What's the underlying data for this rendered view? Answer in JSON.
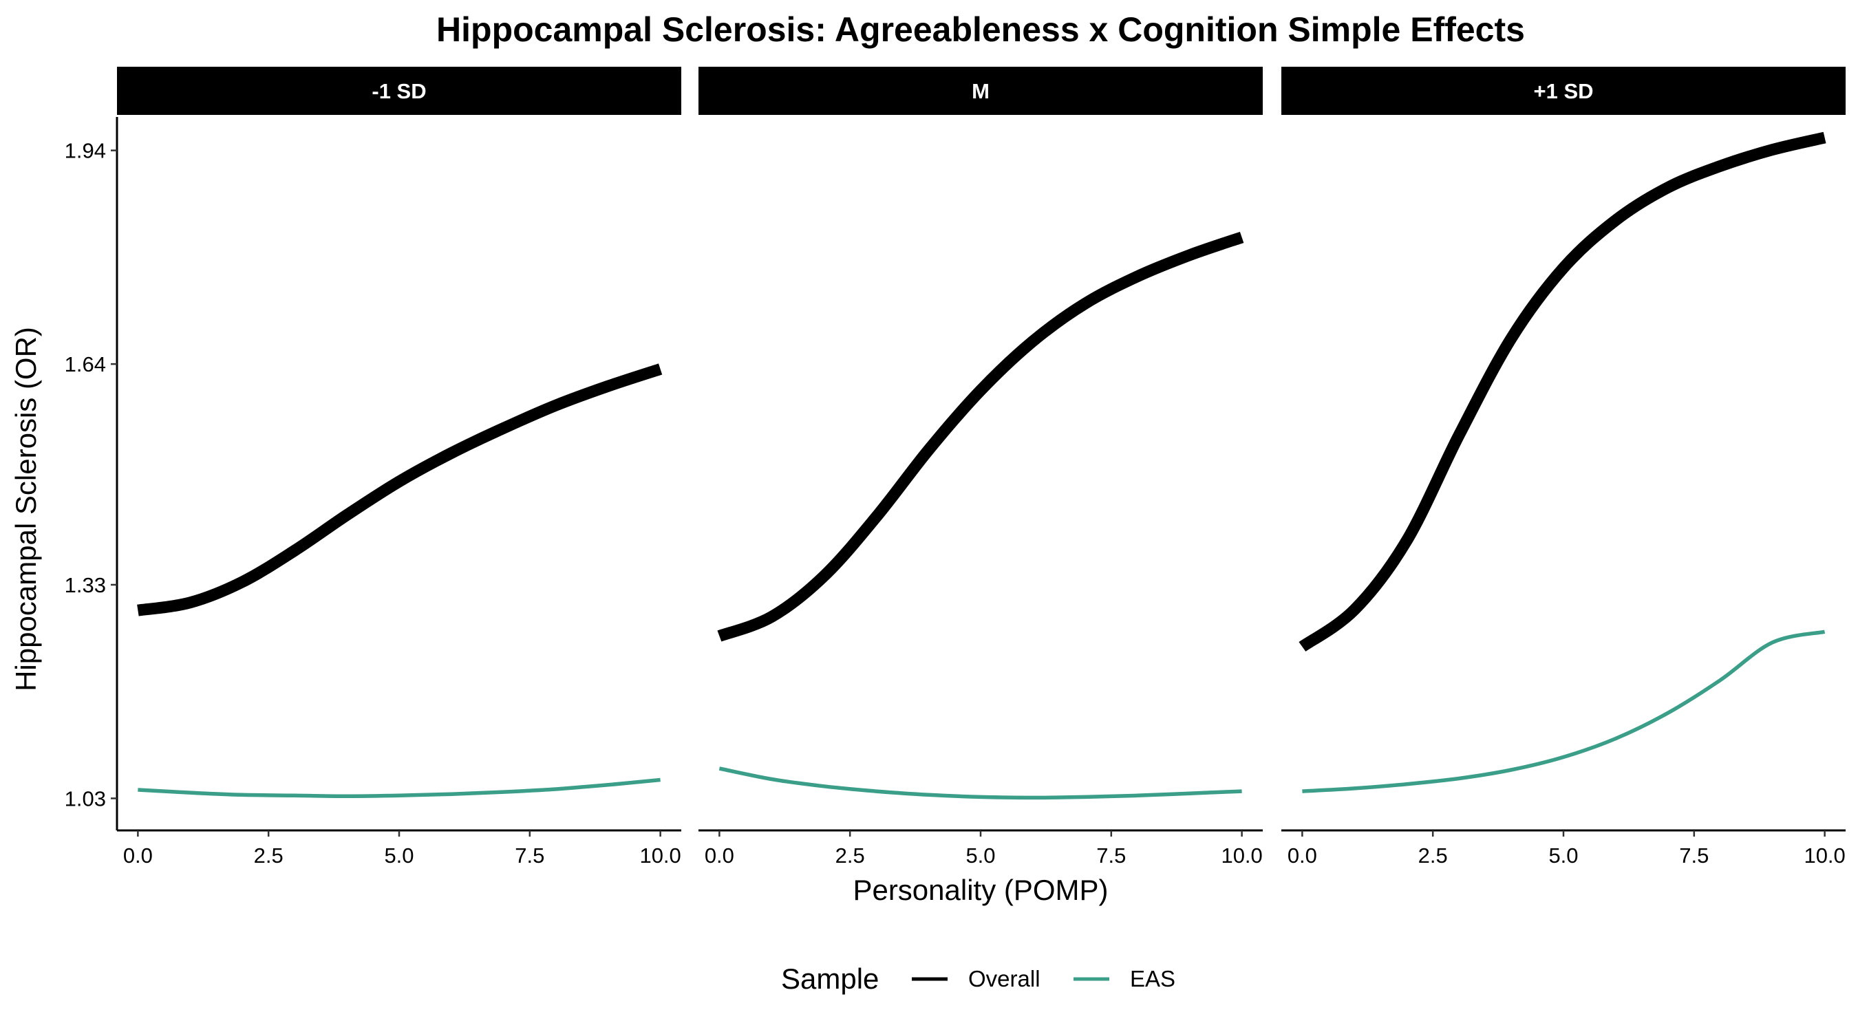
{
  "chart_data": {
    "type": "line",
    "title": "Hippocampal Sclerosis: Agreeableness x Cognition Simple Effects",
    "xlabel": "Personality (POMP)",
    "ylabel": "Hippocampal Sclerosis (OR)",
    "xlim": [
      -0.4,
      10.4
    ],
    "ylim": [
      0.985,
      1.987
    ],
    "x_ticks": [
      0,
      2.5,
      5,
      7.5,
      10
    ],
    "x_tick_labels": [
      "0.0",
      "2.5",
      "5.0",
      "7.5",
      "10.0"
    ],
    "y_ticks": [
      1.03,
      1.33,
      1.64,
      1.94
    ],
    "y_tick_labels": [
      "1.03",
      "1.33",
      "1.64",
      "1.94"
    ],
    "grid": false,
    "legend": {
      "title": "Sample",
      "position": "bottom",
      "entries": [
        {
          "name": "Overall",
          "color": "#000000"
        },
        {
          "name": "EAS",
          "color": "#3a9e89"
        }
      ]
    },
    "panels": [
      {
        "label": "-1 SD",
        "series": [
          {
            "name": "Overall",
            "x": [
              0,
              1,
              2,
              3,
              4,
              5,
              6,
              7,
              8,
              9,
              10
            ],
            "y": [
              1.294,
              1.305,
              1.334,
              1.378,
              1.428,
              1.475,
              1.515,
              1.55,
              1.582,
              1.609,
              1.633
            ]
          },
          {
            "name": "EAS",
            "x": [
              0,
              1,
              2,
              3,
              4,
              5,
              6,
              7,
              8,
              9,
              10
            ],
            "y": [
              1.042,
              1.038,
              1.035,
              1.034,
              1.033,
              1.034,
              1.036,
              1.039,
              1.043,
              1.049,
              1.056
            ]
          }
        ]
      },
      {
        "label": "M",
        "series": [
          {
            "name": "Overall",
            "x": [
              0,
              1,
              2,
              3,
              4,
              5,
              6,
              7,
              8,
              9,
              10
            ],
            "y": [
              1.258,
              1.285,
              1.342,
              1.425,
              1.519,
              1.603,
              1.672,
              1.725,
              1.763,
              1.793,
              1.818
            ]
          },
          {
            "name": "EAS",
            "x": [
              0,
              1,
              2,
              3,
              4,
              5,
              6,
              7,
              8,
              9,
              10
            ],
            "y": [
              1.072,
              1.057,
              1.047,
              1.04,
              1.035,
              1.032,
              1.031,
              1.032,
              1.034,
              1.037,
              1.04
            ]
          }
        ]
      },
      {
        "label": "+1 SD",
        "series": [
          {
            "name": "Overall",
            "x": [
              0,
              1,
              2,
              3,
              4,
              5,
              6,
              7,
              8,
              9,
              10
            ],
            "y": [
              1.243,
              1.295,
              1.392,
              1.54,
              1.676,
              1.775,
              1.842,
              1.888,
              1.918,
              1.941,
              1.958
            ]
          },
          {
            "name": "EAS",
            "x": [
              0,
              1,
              2,
              3,
              4,
              5,
              6,
              7,
              8,
              9,
              10
            ],
            "y": [
              1.04,
              1.044,
              1.05,
              1.058,
              1.07,
              1.088,
              1.114,
              1.15,
              1.196,
              1.249,
              1.264
            ]
          }
        ]
      }
    ]
  }
}
